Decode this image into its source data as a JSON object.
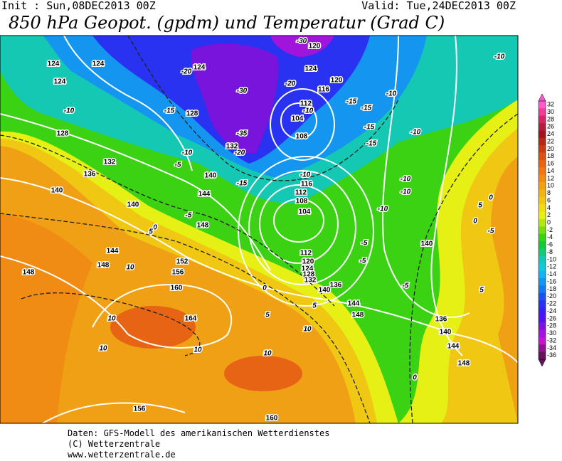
{
  "header": {
    "init": "Init : Sun,08DEC2013 00Z",
    "valid": "Valid: Tue,24DEC2013 00Z",
    "title": "850 hPa Geopot. (gpdm) und Temperatur (Grad C)"
  },
  "map": {
    "height_labels": [
      124,
      124,
      124,
      124,
      128,
      128,
      132,
      136,
      140,
      140,
      140,
      144,
      148,
      144,
      148,
      148,
      152,
      156,
      160,
      164,
      156,
      160,
      120,
      124,
      116,
      120,
      112,
      104,
      108,
      132,
      116,
      112,
      108,
      104,
      112,
      120,
      124,
      128,
      132,
      136,
      140,
      144,
      148,
      140,
      136,
      140,
      144,
      148
    ],
    "temperature_labels": [
      -10,
      -20,
      -15,
      -30,
      -35,
      -20,
      -10,
      -5,
      -15,
      -10,
      -20,
      -10,
      -15,
      -15,
      -15,
      -15,
      -10,
      -10,
      -10,
      -10,
      -10,
      -10,
      -5,
      0,
      5,
      10,
      10,
      10,
      10,
      10,
      10,
      5,
      0,
      5,
      -5,
      -5,
      -5,
      0,
      5,
      0,
      -5,
      -30,
      0,
      5
    ]
  },
  "colorbar": {
    "labels": [
      32,
      30,
      28,
      26,
      24,
      22,
      20,
      18,
      16,
      14,
      12,
      10,
      8,
      6,
      4,
      2,
      0,
      -2,
      -4,
      -6,
      -8,
      -10,
      -12,
      -14,
      -16,
      -18,
      -20,
      -22,
      -24,
      -26,
      -28,
      -30,
      -32,
      -34,
      -36
    ],
    "colors": [
      "#ff5acd",
      "#f03c96",
      "#d22864",
      "#b41e3c",
      "#a0141e",
      "#b42814",
      "#c83c14",
      "#dc5014",
      "#e66414",
      "#f07814",
      "#f08c14",
      "#f0a014",
      "#f0b414",
      "#f0c814",
      "#f0dc14",
      "#e6f014",
      "#b4e614",
      "#78dc14",
      "#3cd214",
      "#14c83c",
      "#14c878",
      "#14c8b4",
      "#14c8dc",
      "#14b4f0",
      "#1496f0",
      "#1478f0",
      "#1e50f0",
      "#2832f0",
      "#3c1ef0",
      "#5014f0",
      "#7814dc",
      "#a014dc",
      "#c814c8",
      "#8c148c",
      "#64145a"
    ]
  },
  "footer": {
    "lines": [
      "Daten: GFS-Modell des amerikanischen Wetterdienstes",
      "(C) Wetterzentrale",
      "www.wetterzentrale.de"
    ]
  }
}
